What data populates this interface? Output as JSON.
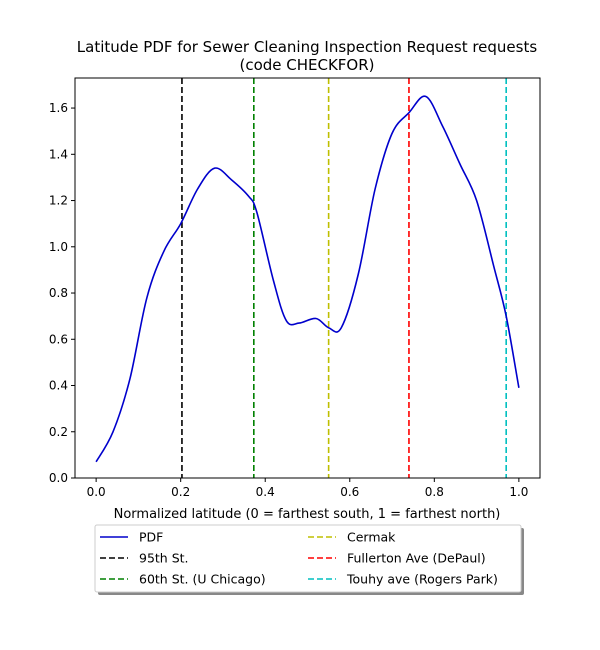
{
  "chart_data": {
    "type": "line",
    "title": "Latitude PDF for Sewer Cleaning Inspection Request  requests",
    "subtitle": "(code CHECKFOR)",
    "xlabel": "Normalized latitude (0 = farthest south, 1 = farthest north)",
    "ylabel": "",
    "xlim": [
      -0.05,
      1.05
    ],
    "ylim": [
      0,
      1.73
    ],
    "xticks": [
      0.0,
      0.2,
      0.4,
      0.6,
      0.8,
      1.0
    ],
    "xtick_labels": [
      "0.0",
      "0.2",
      "0.4",
      "0.6",
      "0.8",
      "1.0"
    ],
    "yticks": [
      0.0,
      0.2,
      0.4,
      0.6,
      0.8,
      1.0,
      1.2,
      1.4,
      1.6
    ],
    "ytick_labels": [
      "0.0",
      "0.2",
      "0.4",
      "0.6",
      "0.8",
      "1.0",
      "1.2",
      "1.4",
      "1.6"
    ],
    "grid": false,
    "legend_placement": "below-center",
    "series": [
      {
        "name": "PDF",
        "color": "#0000cc",
        "style": "solid",
        "x": [
          0.0,
          0.04,
          0.08,
          0.12,
          0.16,
          0.2,
          0.24,
          0.28,
          0.32,
          0.36,
          0.38,
          0.42,
          0.45,
          0.48,
          0.52,
          0.55,
          0.58,
          0.62,
          0.66,
          0.7,
          0.74,
          0.78,
          0.82,
          0.86,
          0.9,
          0.94,
          0.97,
          1.0
        ],
        "y": [
          0.07,
          0.2,
          0.43,
          0.78,
          0.98,
          1.1,
          1.25,
          1.34,
          1.29,
          1.22,
          1.15,
          0.85,
          0.68,
          0.67,
          0.69,
          0.65,
          0.65,
          0.88,
          1.25,
          1.49,
          1.58,
          1.65,
          1.52,
          1.36,
          1.2,
          0.92,
          0.7,
          0.39
        ]
      }
    ],
    "vlines": [
      {
        "name": "95th St.",
        "x": 0.203,
        "color": "#000000"
      },
      {
        "name": "60th St. (U Chicago)",
        "x": 0.373,
        "color": "#008000"
      },
      {
        "name": "Cermak",
        "x": 0.55,
        "color": "#bfbf00"
      },
      {
        "name": "Fullerton Ave (DePaul)",
        "x": 0.74,
        "color": "#ff0000"
      },
      {
        "name": "Touhy ave (Rogers Park)",
        "x": 0.97,
        "color": "#00bfbf"
      }
    ],
    "legend": [
      "PDF",
      "95th St.",
      "60th St. (U Chicago)",
      "Cermak",
      "Fullerton Ave (DePaul)",
      "Touhy ave (Rogers Park)"
    ]
  }
}
